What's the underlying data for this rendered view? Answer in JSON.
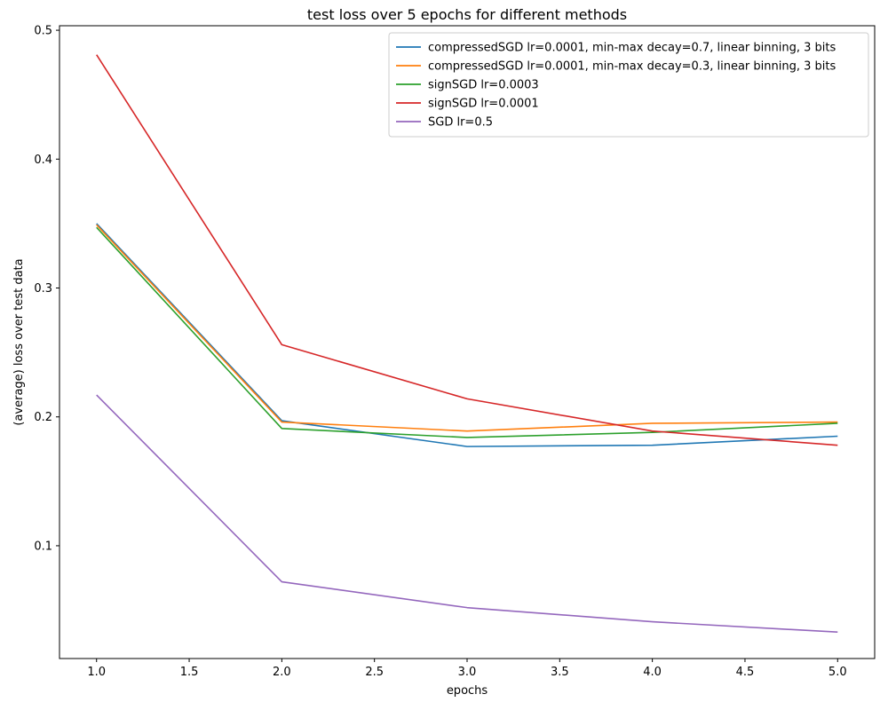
{
  "chart_data": {
    "type": "line",
    "title": "test loss over 5 epochs for different methods",
    "xlabel": "epochs",
    "ylabel": "(average) loss over test data",
    "x": [
      1.0,
      2.0,
      3.0,
      4.0,
      5.0
    ],
    "xlim": [
      0.8,
      5.2
    ],
    "ylim": [
      0.0125,
      0.5035
    ],
    "xticks": [
      1.0,
      1.5,
      2.0,
      2.5,
      3.0,
      3.5,
      4.0,
      4.5,
      5.0
    ],
    "xtick_labels": [
      "1.0",
      "1.5",
      "2.0",
      "2.5",
      "3.0",
      "3.5",
      "4.0",
      "4.5",
      "5.0"
    ],
    "yticks": [
      0.1,
      0.2,
      0.3,
      0.4,
      0.5
    ],
    "ytick_labels": [
      "0.1",
      "0.2",
      "0.3",
      "0.4",
      "0.5"
    ],
    "grid": false,
    "legend_position": "top-right",
    "series": [
      {
        "name": "compressedSGD lr=0.0001, min-max decay=0.7, linear binning, 3 bits",
        "color": "#1f77b4",
        "values": [
          0.35,
          0.197,
          0.177,
          0.178,
          0.185
        ]
      },
      {
        "name": "compressedSGD lr=0.0001, min-max decay=0.3, linear binning, 3 bits",
        "color": "#ff7f0e",
        "values": [
          0.349,
          0.196,
          0.189,
          0.195,
          0.196
        ]
      },
      {
        "name": "signSGD lr=0.0003",
        "color": "#2ca02c",
        "values": [
          0.347,
          0.191,
          0.184,
          0.188,
          0.195
        ]
      },
      {
        "name": "signSGD lr=0.0001",
        "color": "#d62728",
        "values": [
          0.481,
          0.256,
          0.214,
          0.189,
          0.178
        ]
      },
      {
        "name": "SGD lr=0.5",
        "color": "#9467bd",
        "values": [
          0.217,
          0.072,
          0.052,
          0.041,
          0.033
        ]
      }
    ]
  }
}
